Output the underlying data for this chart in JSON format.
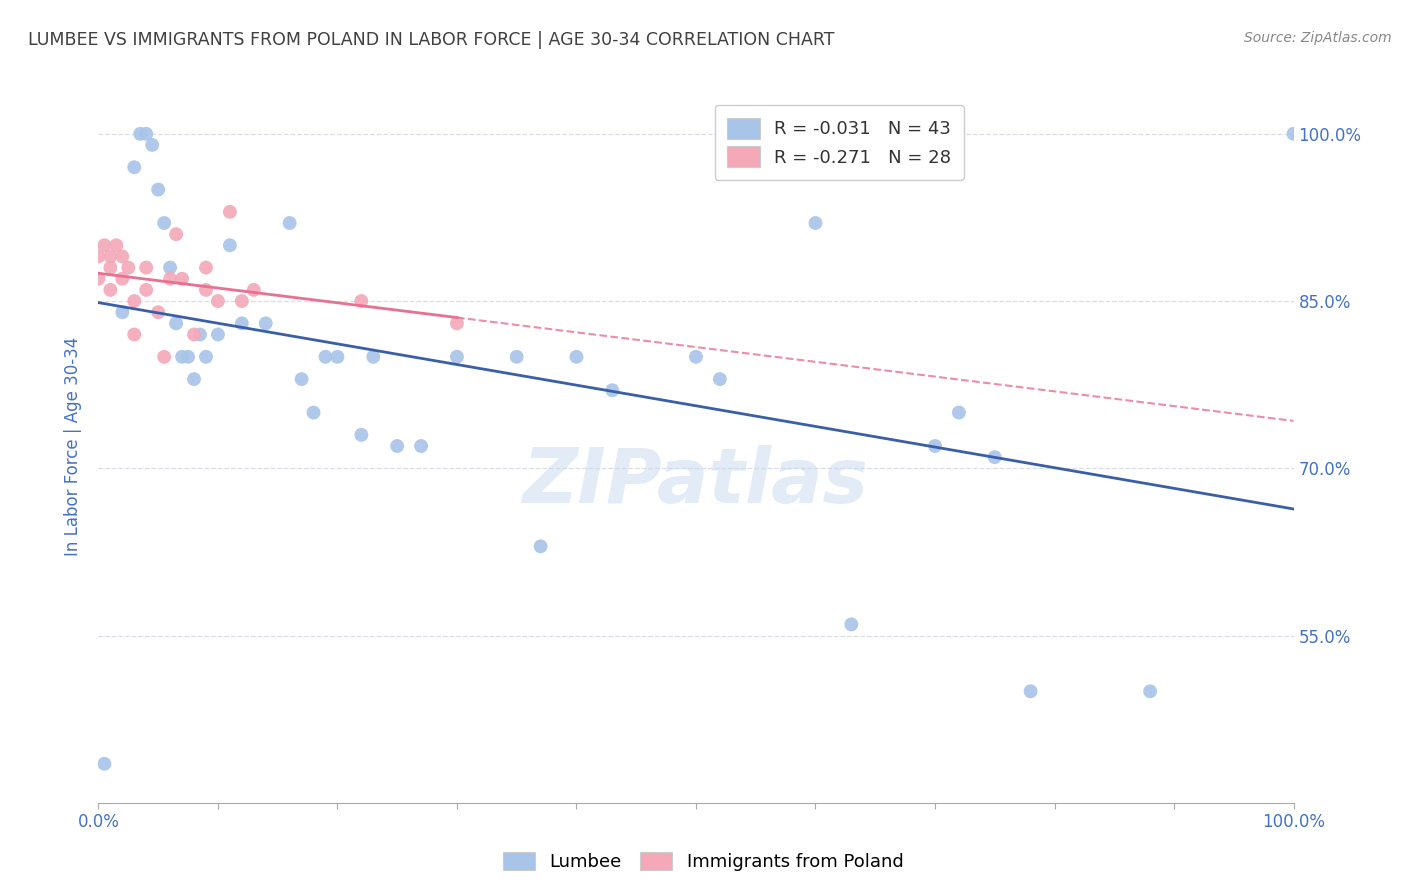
{
  "title": "LUMBEE VS IMMIGRANTS FROM POLAND IN LABOR FORCE | AGE 30-34 CORRELATION CHART",
  "source": "Source: ZipAtlas.com",
  "ylabel": "In Labor Force | Age 30-34",
  "watermark": "ZIPatlas",
  "legend_labels": [
    "Lumbee",
    "Immigrants from Poland"
  ],
  "lumbee_r": -0.031,
  "lumbee_n": 43,
  "poland_r": -0.271,
  "poland_n": 28,
  "lumbee_color": "#a8c4e8",
  "poland_color": "#f4a8b8",
  "lumbee_line_color": "#3a5fa8",
  "poland_line_color": "#e87090",
  "grid_color": "#d8dde6",
  "title_color": "#404040",
  "axis_label_color": "#4472c4",
  "legend_r_color": "#4472c4",
  "xlim": [
    0.0,
    1.0
  ],
  "ylim": [
    0.4,
    1.04
  ],
  "y_ticks": [
    0.55,
    0.7,
    0.85,
    1.0
  ],
  "y_tick_labels": [
    "55.0%",
    "70.0%",
    "85.0%",
    "100.0%"
  ],
  "lumbee_x": [
    0.005,
    0.02,
    0.03,
    0.035,
    0.04,
    0.045,
    0.05,
    0.055,
    0.06,
    0.065,
    0.07,
    0.075,
    0.08,
    0.085,
    0.09,
    0.1,
    0.11,
    0.12,
    0.14,
    0.16,
    0.17,
    0.18,
    0.19,
    0.2,
    0.22,
    0.23,
    0.25,
    0.27,
    0.3,
    0.35,
    0.37,
    0.4,
    0.43,
    0.5,
    0.52,
    0.6,
    0.63,
    0.7,
    0.72,
    0.75,
    0.78,
    0.88,
    1.0
  ],
  "lumbee_y": [
    0.435,
    0.84,
    0.97,
    1.0,
    1.0,
    0.99,
    0.95,
    0.92,
    0.88,
    0.83,
    0.8,
    0.8,
    0.78,
    0.82,
    0.8,
    0.82,
    0.9,
    0.83,
    0.83,
    0.92,
    0.78,
    0.75,
    0.8,
    0.8,
    0.73,
    0.8,
    0.72,
    0.72,
    0.8,
    0.8,
    0.63,
    0.8,
    0.77,
    0.8,
    0.78,
    0.92,
    0.56,
    0.72,
    0.75,
    0.71,
    0.5,
    0.5,
    1.0
  ],
  "poland_x": [
    0.0,
    0.0,
    0.005,
    0.01,
    0.01,
    0.01,
    0.015,
    0.02,
    0.02,
    0.025,
    0.03,
    0.03,
    0.04,
    0.04,
    0.05,
    0.055,
    0.06,
    0.065,
    0.07,
    0.08,
    0.09,
    0.09,
    0.1,
    0.11,
    0.12,
    0.13,
    0.22,
    0.3
  ],
  "poland_y": [
    0.89,
    0.87,
    0.9,
    0.89,
    0.88,
    0.86,
    0.9,
    0.89,
    0.87,
    0.88,
    0.85,
    0.82,
    0.88,
    0.86,
    0.84,
    0.8,
    0.87,
    0.91,
    0.87,
    0.82,
    0.88,
    0.86,
    0.85,
    0.93,
    0.85,
    0.86,
    0.85,
    0.83
  ]
}
